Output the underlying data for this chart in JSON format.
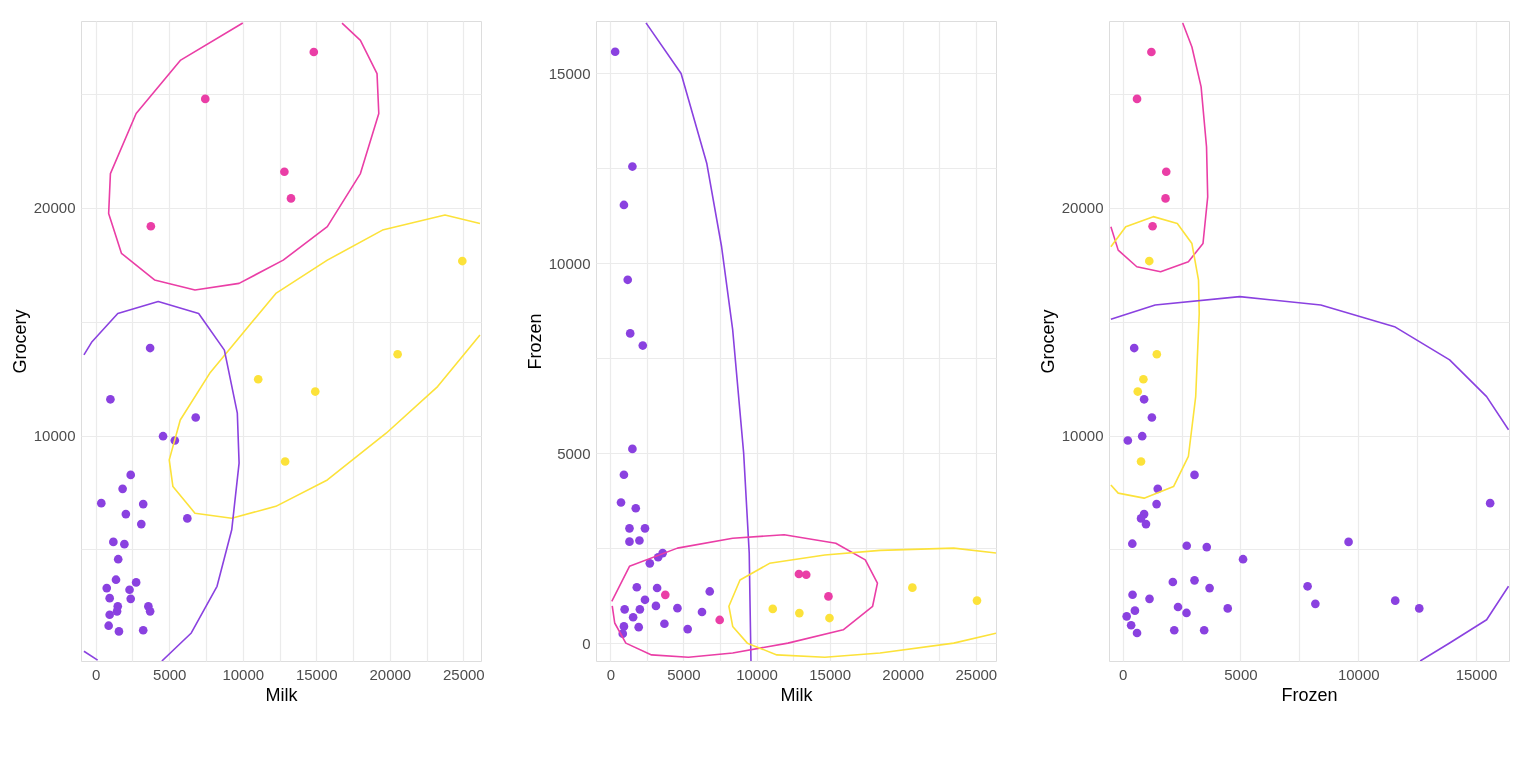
{
  "chart_data": [
    {
      "type": "scatter",
      "xlabel": "Milk",
      "ylabel": "Grocery",
      "grid": true,
      "marker": "circle",
      "xlim": [
        -1000,
        26200
      ],
      "ylim": [
        100,
        28200
      ],
      "xticks": [
        0,
        {
          "value": 2500,
          "label": null
        },
        5000,
        {
          "value": 7500,
          "label": null
        },
        10000,
        {
          "value": 12500,
          "label": null
        },
        15000,
        {
          "value": 17500,
          "label": null
        },
        20000,
        {
          "value": 22500,
          "label": null
        },
        25000
      ],
      "yticks": [
        {
          "value": 5000,
          "label": null
        },
        10000,
        {
          "value": 15000,
          "label": null
        },
        20000,
        {
          "value": 25000,
          "label": null
        }
      ],
      "series": [
        {
          "color": "#8a41e0",
          "x": [
            3700,
            1000,
            6800,
            4580,
            5380,
            2380,
            1830,
            380,
            3230,
            2050,
            3100,
            6230,
            1200,
            1950,
            1530,
            1380,
            2750,
            750,
            2300,
            2380,
            950,
            1500,
            3580,
            3700,
            950,
            1450,
            880,
            1580,
            3230
          ],
          "values": [
            13840,
            11590,
            10790,
            9970,
            9780,
            8270,
            7660,
            7030,
            6990,
            6550,
            6110,
            6360,
            5330,
            5230,
            4570,
            3670,
            3550,
            3300,
            3230,
            2830,
            2860,
            2500,
            2500,
            2280,
            2130,
            2280,
            1650,
            1400,
            1450
          ]
        },
        {
          "color": "#ea3ea6",
          "x": [
            14830,
            7450,
            12830,
            13280,
            3750
          ],
          "values": [
            26840,
            24780,
            21580,
            20410,
            19190
          ]
        },
        {
          "color": "#fce23a",
          "x": [
            24930,
            20530,
            11050,
            14930,
            12880
          ],
          "values": [
            17660,
            13570,
            12470,
            11930,
            8860
          ]
        },
        {
          "type": "line",
          "marker": "none",
          "color": "#ea3ea6",
          "x": [
            10000,
            5750,
            2750,
            1000,
            880,
            1750,
            4000,
            6750,
            9750,
            12750,
            15750,
            18000,
            19250,
            19130,
            18000,
            16750
          ],
          "values": [
            28110,
            26470,
            24140,
            21500,
            19750,
            18000,
            16830,
            16390,
            16680,
            17700,
            19170,
            21500,
            24140,
            25890,
            27350,
            28110
          ]
        },
        {
          "type": "line",
          "marker": "none",
          "color": "#fce23a",
          "x": [
            26130,
            23250,
            19750,
            15750,
            12250,
            9250,
            6750,
            5250,
            5000,
            5750,
            7750,
            10000,
            12250,
            15750,
            19500,
            23750,
            26130
          ],
          "values": [
            14410,
            12150,
            10100,
            8050,
            6890,
            6370,
            6590,
            7760,
            8930,
            10680,
            12730,
            14490,
            16240,
            17700,
            19020,
            19680,
            19310
          ]
        },
        {
          "type": "line",
          "marker": "none",
          "color": "#8a41e0",
          "x": [
            -800,
            -250,
            1500,
            4250,
            7000,
            8750,
            9630,
            9750,
            9250,
            8250,
            6500,
            4500
          ],
          "values": [
            13540,
            14120,
            15360,
            15880,
            15360,
            13750,
            10980,
            8790,
            5860,
            3380,
            1330,
            100
          ]
        },
        {
          "type": "line",
          "marker": "none",
          "color": "#8a41e0",
          "x": [
            -800,
            130
          ],
          "values": [
            530,
            140
          ]
        }
      ]
    },
    {
      "type": "scatter",
      "xlabel": "Milk",
      "ylabel": "Frozen",
      "grid": true,
      "marker": "circle",
      "xlim": [
        -980,
        26380
      ],
      "ylim": [
        -470,
        16370
      ],
      "xticks": [
        0,
        {
          "value": 2500,
          "label": null
        },
        5000,
        {
          "value": 7500,
          "label": null
        },
        10000,
        {
          "value": 12500,
          "label": null
        },
        15000,
        {
          "value": 17500,
          "label": null
        },
        20000,
        {
          "value": 22500,
          "label": null
        },
        25000
      ],
      "yticks": [
        0,
        {
          "value": 2500,
          "label": null
        },
        5000,
        {
          "value": 7500,
          "label": null
        },
        10000,
        {
          "value": 12500,
          "label": null
        },
        15000
      ],
      "series": [
        {
          "color": "#8a41e0",
          "x": [
            330,
            1510,
            930,
            1190,
            1360,
            2220,
            1510,
            930,
            730,
            1740,
            1310,
            2370,
            1310,
            1990,
            3580,
            3270,
            2700,
            1810,
            3200,
            6800,
            2370,
            980,
            2020,
            3120,
            4590,
            6270,
            1560,
            1940,
            930,
            3700,
            5290,
            850
          ],
          "values": [
            15560,
            12540,
            11530,
            9560,
            8150,
            7830,
            5110,
            4430,
            3700,
            3550,
            3020,
            3020,
            2670,
            2700,
            2370,
            2260,
            2100,
            1470,
            1450,
            1360,
            1140,
            890,
            890,
            980,
            920,
            820,
            680,
            420,
            440,
            510,
            370,
            250
          ]
        },
        {
          "color": "#ea3ea6",
          "x": [
            12900,
            13400,
            14920,
            3760,
            7480
          ],
          "values": [
            1820,
            1800,
            1230,
            1270,
            610
          ]
        },
        {
          "color": "#fce23a",
          "x": [
            20660,
            25080,
            11110,
            12930,
            14990
          ],
          "values": [
            1460,
            1120,
            900,
            790,
            660
          ]
        },
        {
          "type": "line",
          "marker": "none",
          "color": "#8a41e0",
          "x": [
            2440,
            4840,
            6600,
            7610,
            8370,
            9120,
            9500,
            9620
          ],
          "values": [
            16320,
            14990,
            12620,
            10430,
            8240,
            5000,
            2370,
            -470
          ]
        },
        {
          "type": "line",
          "marker": "none",
          "color": "#ea3ea6",
          "x": [
            100,
            1310,
            4590,
            8370,
            11890,
            15420,
            17440,
            18270,
            17940,
            15930,
            12150,
            8370,
            5340,
            2820,
            1060,
            300,
            130
          ],
          "values": [
            1100,
            2020,
            2500,
            2760,
            2850,
            2630,
            2190,
            1580,
            970,
            350,
            0,
            -260,
            -370,
            -310,
            0,
            530,
            980
          ]
        },
        {
          "type": "line",
          "marker": "none",
          "color": "#fce23a",
          "x": [
            26380,
            23490,
            18450,
            14670,
            10890,
            8870,
            8110,
            8370,
            9370,
            11390,
            14670,
            18450,
            23490,
            26380
          ],
          "values": [
            2370,
            2500,
            2440,
            2320,
            2100,
            1660,
            970,
            440,
            0,
            -310,
            -370,
            -260,
            0,
            260
          ]
        }
      ]
    },
    {
      "type": "scatter",
      "xlabel": "Frozen",
      "ylabel": "Grocery",
      "grid": true,
      "marker": "circle",
      "xlim": [
        -580,
        16400
      ],
      "ylim": [
        100,
        28200
      ],
      "xticks": [
        0,
        {
          "value": 2500,
          "label": null
        },
        5000,
        {
          "value": 7500,
          "label": null
        },
        10000,
        {
          "value": 12500,
          "label": null
        },
        15000
      ],
      "yticks": [
        {
          "value": 5000,
          "label": null
        },
        10000,
        {
          "value": 15000,
          "label": null
        },
        20000,
        {
          "value": 25000,
          "label": null
        }
      ],
      "series": [
        {
          "color": "#8a41e0",
          "x": [
            490,
            910,
            1240,
            830,
            220,
            3050,
            1490,
            1440,
            15600,
            910,
            780,
            990,
            410,
            2720,
            3570,
            9590,
            5110,
            2130,
            3050,
            3690,
            7850,
            420,
            1140,
            8180,
            11570,
            12590,
            2350,
            2710,
            4460,
            520,
            170,
            360,
            610,
            2190,
            3460
          ],
          "values": [
            13840,
            11590,
            10790,
            9970,
            9780,
            8270,
            7660,
            6990,
            7030,
            6550,
            6360,
            6110,
            5250,
            5160,
            5100,
            5330,
            4570,
            3570,
            3640,
            3300,
            3380,
            3010,
            2830,
            2610,
            2750,
            2410,
            2470,
            2210,
            2410,
            2310,
            2060,
            1670,
            1330,
            1450,
            1450
          ]
        },
        {
          "color": "#ea3ea6",
          "x": [
            1220,
            610,
            1850,
            1820,
            1270
          ],
          "values": [
            26840,
            24780,
            21580,
            20410,
            19190
          ]
        },
        {
          "color": "#fce23a",
          "x": [
            1130,
            1450,
            880,
            640,
            780
          ],
          "values": [
            17660,
            13570,
            12470,
            11930,
            8860
          ]
        },
        {
          "type": "line",
          "marker": "none",
          "color": "#ea3ea6",
          "x": [
            -500,
            -190,
            600,
            1610,
            2790,
            3410,
            3610,
            3560,
            3330,
            2940,
            2550
          ],
          "values": [
            19170,
            18140,
            17410,
            17190,
            17630,
            18430,
            20480,
            22680,
            25310,
            27060,
            28110
          ]
        },
        {
          "type": "line",
          "marker": "none",
          "color": "#fce23a",
          "x": [
            -500,
            130,
            1300,
            2320,
            2940,
            3220,
            3250,
            3100,
            2790,
            2160,
            910,
            -190,
            -500
          ],
          "values": [
            18290,
            19170,
            19610,
            19310,
            18430,
            16820,
            15360,
            11710,
            9080,
            7760,
            7250,
            7470,
            7830
          ]
        },
        {
          "type": "line",
          "marker": "none",
          "color": "#8a41e0",
          "x": [
            -500,
            1380,
            4970,
            8410,
            11540,
            13880,
            15450,
            16380
          ],
          "values": [
            15100,
            15730,
            16100,
            15730,
            14780,
            13320,
            11710,
            10250
          ]
        },
        {
          "type": "line",
          "marker": "none",
          "color": "#8a41e0",
          "x": [
            16380,
            15450,
            13880,
            12630
          ],
          "values": [
            3380,
            1910,
            890,
            100
          ]
        }
      ]
    }
  ]
}
